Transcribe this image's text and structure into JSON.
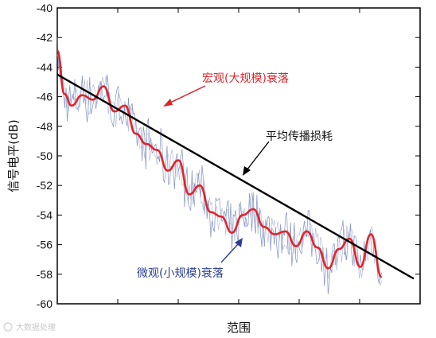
{
  "chart_data": {
    "type": "line",
    "xlabel": "范围",
    "ylabel": "信号电平(dB)",
    "ylim": [
      -60,
      -40
    ],
    "yticks": [
      "-40",
      "-42",
      "-44",
      "-46",
      "-48",
      "-50",
      "-52",
      "-54",
      "-56",
      "-58",
      "-60"
    ],
    "grid": false,
    "series": [
      {
        "name": "平均传播损耗",
        "color": "#000000",
        "x": [
          0,
          1
        ],
        "values": [
          -44.5,
          -58.3
        ]
      },
      {
        "name": "宏观(大规模)衰落",
        "color": "#e0242b",
        "x": [
          0,
          0.02,
          0.04,
          0.07,
          0.1,
          0.13,
          0.16,
          0.19,
          0.22,
          0.25,
          0.28,
          0.31,
          0.34,
          0.37,
          0.4,
          0.43,
          0.46,
          0.49,
          0.52,
          0.55,
          0.58,
          0.61,
          0.64,
          0.67,
          0.7,
          0.73,
          0.76,
          0.79,
          0.82,
          0.85,
          0.88,
          0.91
        ],
        "values": [
          -42.9,
          -45.8,
          -46.6,
          -45.9,
          -46.2,
          -45.3,
          -47.0,
          -46.6,
          -48.5,
          -49.2,
          -49.6,
          -51.0,
          -50.3,
          -52.6,
          -52.0,
          -53.8,
          -54.1,
          -55.2,
          -54.0,
          -53.6,
          -54.8,
          -55.3,
          -55.1,
          -56.1,
          -55.1,
          -56.2,
          -57.6,
          -56.3,
          -55.6,
          -57.5,
          -55.3,
          -58.2
        ]
      },
      {
        "name": "微观(小规模)衰落",
        "color": "#6c7fb8",
        "values": []
      }
    ],
    "annotations": [
      "宏观(大规模)衰落",
      "平均传播损耗",
      "微观(小规模)衰落"
    ]
  },
  "watermark": "大数据处理"
}
